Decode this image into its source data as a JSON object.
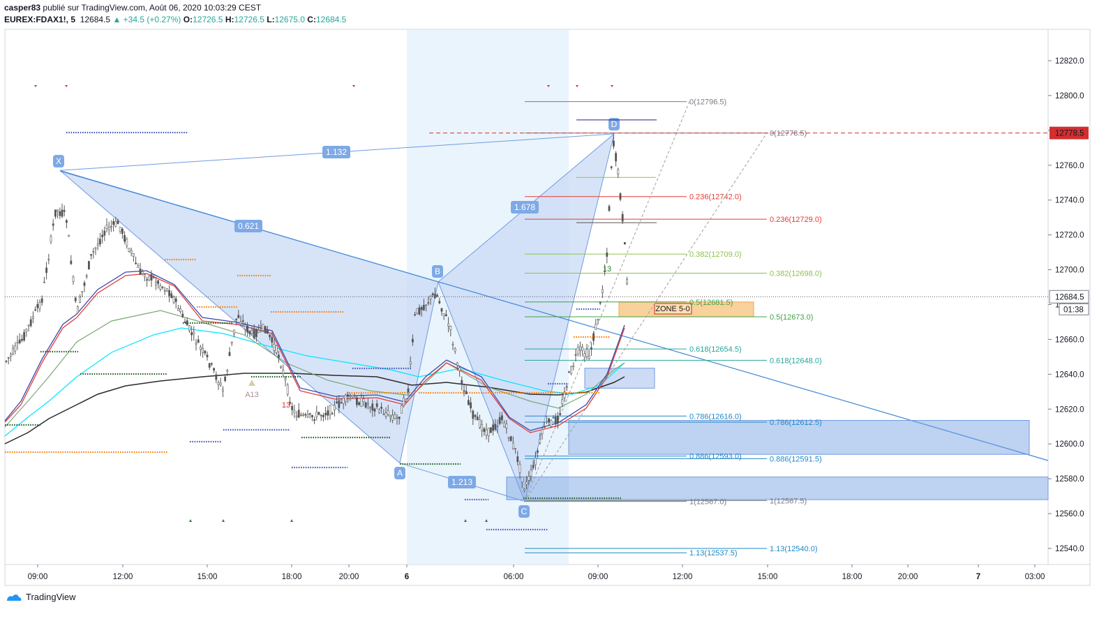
{
  "header": {
    "author": "casper83",
    "published": "publié sur TradingView.com, Août 06, 2020 10:03:29 CEST",
    "symbol": "EUREX:FDAX1!, 5",
    "last": "12684.5",
    "change": "+34.5 (+0.27%)",
    "o_label": "O:",
    "o": "12726.5",
    "h_label": "H:",
    "h": "12726.5",
    "l_label": "L:",
    "l": "12675.0",
    "c_label": "C:",
    "c": "12684.5"
  },
  "footer": {
    "brand": "TradingView"
  },
  "colors": {
    "accent": "#26a69a",
    "fibRed": "#e53935",
    "fibGreen": "#7cb342",
    "fibTeal": "#26a69a",
    "fibBlue": "#1e88c7",
    "pattern": "#5d8fd6"
  },
  "chart_data": {
    "type": "candlestick",
    "symbol": "EUREX:FDAX1!, 5",
    "ylim": [
      12530,
      12835
    ],
    "y_ticks": [
      12540,
      12560,
      12580,
      12600,
      12620,
      12640,
      12660,
      12680,
      12700,
      12720,
      12740,
      12760,
      12780,
      12800,
      12820
    ],
    "x_ticks": [
      "09:00",
      "12:00",
      "15:00",
      "18:00",
      "20:00",
      "6",
      "06:00",
      "09:00",
      "12:00",
      "15:00",
      "18:00",
      "20:00",
      "7",
      "03:00"
    ],
    "price_labels": {
      "last": "12684.5",
      "countdown": "01:38",
      "alert": "12778.5"
    },
    "harmonic_points": [
      {
        "name": "X",
        "price": 12757
      },
      {
        "name": "A",
        "price": 12589
      },
      {
        "name": "B",
        "price": 12693
      },
      {
        "name": "C",
        "price": 12567
      },
      {
        "name": "D",
        "price": 12778
      }
    ],
    "ratios": [
      "1.132",
      "0.621",
      "1.678",
      "1.213"
    ],
    "fib_levels_a": [
      {
        "label": "0(12796.5)",
        "price": 12796.5
      },
      {
        "label": "0.236(12742.0)",
        "price": 12742.0
      },
      {
        "label": "0.382(12709.0)",
        "price": 12709.0
      },
      {
        "label": "0.5(12681.5)",
        "price": 12681.5
      },
      {
        "label": "0.618(12654.5)",
        "price": 12654.5
      },
      {
        "label": "0.786(12616.0)",
        "price": 12616.0
      },
      {
        "label": "0.886(12593.0)",
        "price": 12593.0
      },
      {
        "label": "1(12567.0)",
        "price": 12567.0
      },
      {
        "label": "1.13(12537.5)",
        "price": 12537.5
      }
    ],
    "fib_levels_b": [
      {
        "label": "0(12778.5)",
        "price": 12778.5
      },
      {
        "label": "0.236(12729.0)",
        "price": 12729.0
      },
      {
        "label": "0.382(12698.0)",
        "price": 12698.0
      },
      {
        "label": "0.5(12673.0)",
        "price": 12673.0
      },
      {
        "label": "0.618(12648.0)",
        "price": 12648.0
      },
      {
        "label": "0.786(12612.5)",
        "price": 12612.5
      },
      {
        "label": "0.886(12591.5)",
        "price": 12591.5
      },
      {
        "label": "1(12567.5)",
        "price": 12567.5
      },
      {
        "label": "1.13(12540.0)",
        "price": 12540.0
      }
    ],
    "zone_label": "ZONE 5-0",
    "markers": [
      "A13",
      "13",
      "13"
    ]
  }
}
